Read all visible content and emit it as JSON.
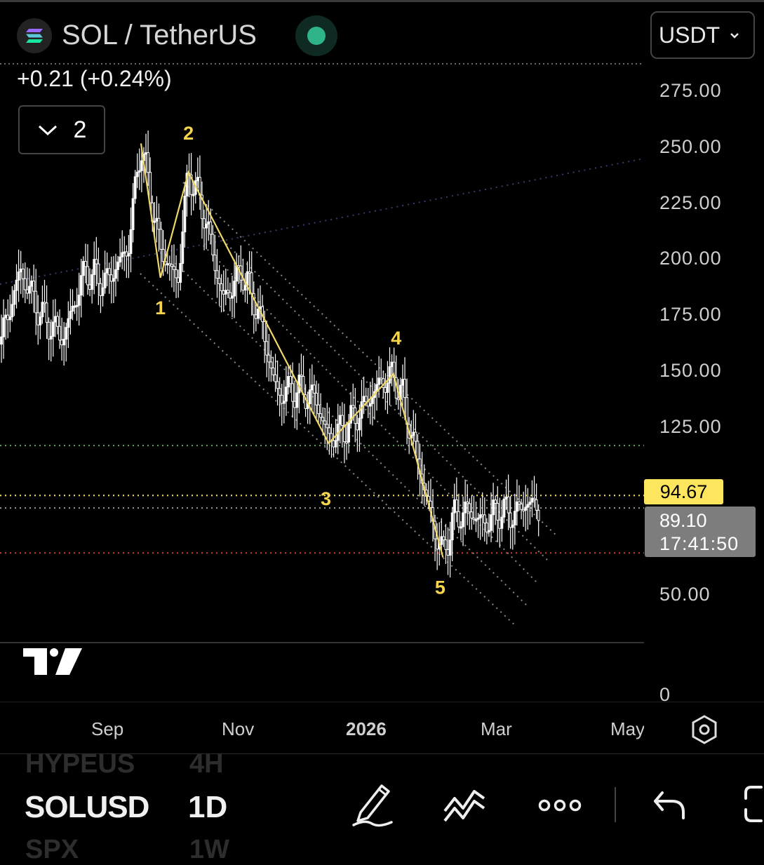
{
  "header": {
    "title": "SOL / TetherUS",
    "currency": "USDT",
    "change": "+0.21 (+0.24%)",
    "collapse_count": "2"
  },
  "price_axis": {
    "ticks": [
      "275.00",
      "250.00",
      "225.00",
      "200.00",
      "175.00",
      "150.00",
      "125.00",
      "50.00"
    ],
    "last_price": "94.67",
    "current_price": "89.10",
    "countdown": "17:41:50"
  },
  "volume_axis": {
    "zero_label": "0"
  },
  "time_axis": {
    "labels": [
      {
        "text": "Sep",
        "bold": false
      },
      {
        "text": "Nov",
        "bold": false
      },
      {
        "text": "2026",
        "bold": true
      },
      {
        "text": "Mar",
        "bold": false
      },
      {
        "text": "May",
        "bold": false
      }
    ]
  },
  "waves": [
    "1",
    "2",
    "3",
    "4",
    "5"
  ],
  "bottom_bar": {
    "symbol": "SOLUSD",
    "interval": "1D",
    "ghost_prev_symbol": "HYPEUS",
    "ghost_prev_interval": "4H",
    "ghost_next_symbol": "SPX",
    "ghost_next_interval": "1W"
  },
  "colors": {
    "background": "#000000",
    "wave_line": "#f1d76a",
    "wave_label": "#f6d44e",
    "last_price_badge": "#fde65e",
    "current_badge": "#7d7d7d",
    "status_dot": "#2fb38a",
    "support_line": "#d0402f",
    "resistance_line": "#5fa35f"
  },
  "chart_data": {
    "type": "line",
    "title": "SOL / TetherUS",
    "x": [
      "2025-07-15",
      "2025-07-25",
      "2025-08-04",
      "2025-08-14",
      "2025-08-24",
      "2025-09-03",
      "2025-09-13",
      "2025-09-19",
      "2025-09-28",
      "2025-10-06",
      "2025-10-11",
      "2025-10-18",
      "2025-10-27",
      "2025-11-05",
      "2025-11-13",
      "2025-11-21",
      "2025-12-01",
      "2025-12-09",
      "2025-12-15",
      "2025-12-24",
      "2026-01-01",
      "2026-01-08",
      "2026-01-14",
      "2026-01-18",
      "2026-01-25",
      "2026-02-01",
      "2026-02-06",
      "2026-02-11",
      "2026-02-18",
      "2026-02-25",
      "2026-03-04",
      "2026-03-11",
      "2026-03-17",
      "2026-03-21"
    ],
    "series": [
      {
        "values": [
          160,
          195,
          175,
          165,
          195,
          190,
          205,
          252,
          205,
          190,
          240,
          222,
          182,
          195,
          175,
          140,
          142,
          138,
          120,
          126,
          135,
          145,
          148,
          140,
          112,
          83,
          68,
          85,
          88,
          82,
          88,
          86,
          92,
          89
        ]
      }
    ],
    "wave_points": [
      {
        "label": "1",
        "x": "2025-09-28",
        "y": 192
      },
      {
        "label": "2",
        "x": "2025-10-11",
        "y": 239
      },
      {
        "label": "3",
        "x": "2025-12-15",
        "y": 118
      },
      {
        "label": "4",
        "x": "2026-01-14",
        "y": 149
      },
      {
        "label": "5",
        "x": "2026-02-06",
        "y": 67
      }
    ],
    "horizontal_levels": [
      {
        "value": 117,
        "color": "#5fa35f"
      },
      {
        "value": 94.67,
        "color": "#fde65e"
      },
      {
        "value": 89.1,
        "color": "#9a9a9a"
      },
      {
        "value": 69,
        "color": "#d0402f"
      }
    ],
    "ylim": [
      40,
      290
    ],
    "grid": false,
    "legend": "none"
  }
}
